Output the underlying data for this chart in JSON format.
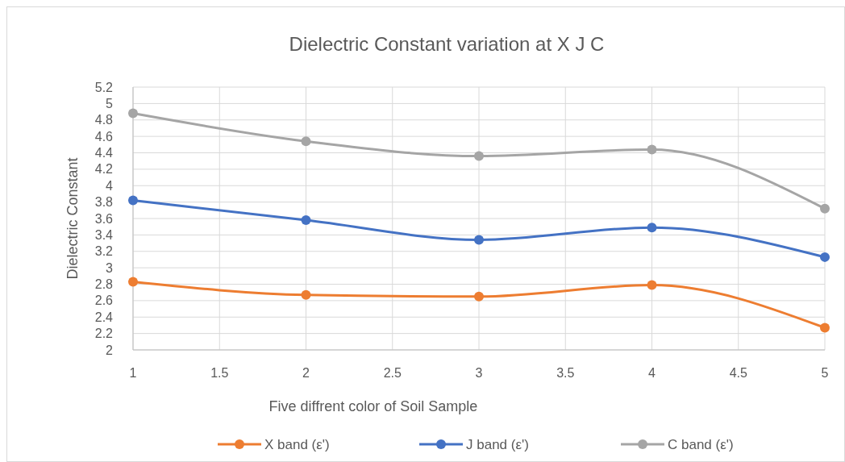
{
  "chart_data": {
    "type": "line",
    "title": "Dielectric Constant variation at X J C",
    "xlabel": "Five diffrent color of Soil Sample",
    "ylabel": "Dielectric Constant",
    "x": [
      1,
      2,
      3,
      4,
      5
    ],
    "series": [
      {
        "name": "X band (ε')",
        "color": "#ed7d31",
        "values": [
          2.83,
          2.67,
          2.65,
          2.79,
          2.27
        ]
      },
      {
        "name": "J band (ε')",
        "color": "#4472c4",
        "values": [
          3.82,
          3.58,
          3.34,
          3.49,
          3.13
        ]
      },
      {
        "name": "C band (ε')",
        "color": "#a5a5a5",
        "values": [
          4.88,
          4.54,
          4.36,
          4.44,
          3.72
        ]
      }
    ],
    "xlim": [
      1,
      5
    ],
    "xticks": [
      1,
      1.5,
      2,
      2.5,
      3,
      3.5,
      4,
      4.5,
      5
    ],
    "ylim": [
      2,
      5.2
    ],
    "yticks": [
      2,
      2.2,
      2.4,
      2.6,
      2.8,
      3,
      3.2,
      3.4,
      3.6,
      3.8,
      4,
      4.2,
      4.4,
      4.6,
      4.8,
      5,
      5.2
    ],
    "grid": true,
    "legend": "bottom",
    "marker": "circle",
    "line_style": "solid"
  }
}
